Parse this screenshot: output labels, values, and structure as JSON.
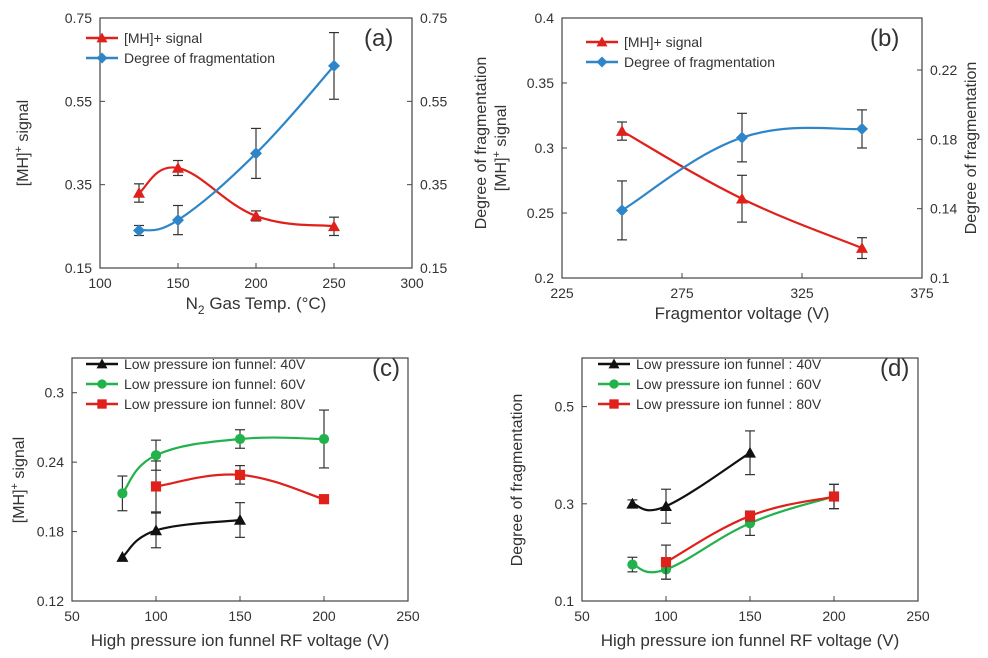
{
  "colors": {
    "red": "#e0201b",
    "blue": "#2e86c8",
    "black": "#111111",
    "green": "#22b24c"
  },
  "chart_data": [
    {
      "type": "line",
      "panel": "(a)",
      "xlabel_main": "N",
      "xlabel_sub": "2",
      "xlabel_rest": " Gas Temp. (°C)",
      "xlim": [
        100,
        300
      ],
      "xticks": [
        "100",
        "150",
        "200",
        "250",
        "300"
      ],
      "ylim": [
        0.15,
        0.75
      ],
      "yticks": [
        "0.15",
        "0.35",
        "0.55",
        "0.75"
      ],
      "ylabel_main": "[MH]",
      "ylabel_sup": "+",
      "ylabel_rest": " signal",
      "y2lim": [
        0.15,
        0.75
      ],
      "y2ticks": [
        "0.15",
        "0.35",
        "0.55",
        "0.75"
      ],
      "y2label": "Degree of fragmentation",
      "legend_position": "top-left",
      "series": [
        {
          "name": "[MH]+ signal",
          "axis": "left",
          "color": "#e0201b",
          "marker": "triangle",
          "x": [
            125,
            150,
            200,
            250
          ],
          "y": [
            0.33,
            0.39,
            0.275,
            0.25
          ],
          "err": [
            0.022,
            0.018,
            0.012,
            0.022
          ]
        },
        {
          "name": "Degree of fragmentation",
          "axis": "right",
          "color": "#2e86c8",
          "marker": "diamond",
          "x": [
            125,
            150,
            200,
            250
          ],
          "y": [
            0.24,
            0.265,
            0.425,
            0.635
          ],
          "err": [
            0.012,
            0.035,
            0.06,
            0.08
          ]
        }
      ]
    },
    {
      "type": "line",
      "panel": "(b)",
      "xlabel_main": "Fragmentor voltage (V)",
      "xlim": [
        225,
        375
      ],
      "xticks": [
        "225",
        "275",
        "325",
        "375"
      ],
      "ylim": [
        0.2,
        0.4
      ],
      "yticks": [
        "0.2",
        "0.25",
        "0.3",
        "0.35",
        "0.4"
      ],
      "ylabel_main": "[MH]",
      "ylabel_sup": "+",
      "ylabel_rest": " signal",
      "y2lim": [
        0.1,
        0.25
      ],
      "y2ticks": [
        "0.1",
        "0.14",
        "0.18",
        "0.22"
      ],
      "y2label": "Degree of fragmentation",
      "legend_position": "top-left",
      "series": [
        {
          "name": "[MH]+ signal",
          "axis": "left",
          "color": "#e0201b",
          "marker": "triangle",
          "x": [
            250,
            300,
            350
          ],
          "y": [
            0.313,
            0.261,
            0.223
          ],
          "err": [
            0.007,
            0.018,
            0.008
          ]
        },
        {
          "name": "Degree of fragmentation",
          "axis": "right",
          "color": "#2e86c8",
          "marker": "diamond",
          "x": [
            250,
            300,
            350
          ],
          "y": [
            0.139,
            0.181,
            0.186
          ],
          "err": [
            0.017,
            0.014,
            0.011
          ]
        }
      ]
    },
    {
      "type": "line",
      "panel": "(c)",
      "xlabel_main": "High pressure ion funnel RF voltage (V)",
      "xlim": [
        50,
        250
      ],
      "xticks": [
        "50",
        "100",
        "150",
        "200",
        "250"
      ],
      "ylim": [
        0.12,
        0.33
      ],
      "yticks": [
        "0.12",
        "0.18",
        "0.24",
        "0.3"
      ],
      "ylabel_main": "[MH]",
      "ylabel_sup": "+",
      "ylabel_rest": " signal",
      "legend_position": "top-left",
      "series": [
        {
          "name": "Low pressure ion funnel: 40V",
          "axis": "left",
          "color": "#111111",
          "marker": "triangle",
          "x": [
            80,
            100,
            150
          ],
          "y": [
            0.158,
            0.181,
            0.19
          ],
          "err": [
            0,
            0.015,
            0.015
          ]
        },
        {
          "name": "Low pressure ion funnel: 60V",
          "axis": "left",
          "color": "#22b24c",
          "marker": "circle",
          "x": [
            80,
            100,
            150,
            200
          ],
          "y": [
            0.213,
            0.246,
            0.26,
            0.26
          ],
          "err": [
            0.015,
            0.013,
            0.008,
            0.025
          ]
        },
        {
          "name": "Low pressure ion funnel: 80V",
          "axis": "left",
          "color": "#e0201b",
          "marker": "square",
          "x": [
            100,
            150,
            200
          ],
          "y": [
            0.219,
            0.229,
            0.208
          ],
          "err": [
            0.022,
            0.008,
            0
          ]
        }
      ]
    },
    {
      "type": "line",
      "panel": "(d)",
      "xlabel_main": "High pressure ion funnel RF voltage (V)",
      "xlim": [
        50,
        250
      ],
      "xticks": [
        "50",
        "100",
        "150",
        "200",
        "250"
      ],
      "ylim": [
        0.1,
        0.6
      ],
      "yticks": [
        "0.1",
        "0.3",
        "0.5"
      ],
      "ylabel_main": "Degree of fragmentation",
      "legend_position": "top-left",
      "series": [
        {
          "name": "Low pressure ion funnel : 40V",
          "axis": "left",
          "color": "#111111",
          "marker": "triangle",
          "x": [
            80,
            100,
            150
          ],
          "y": [
            0.3,
            0.295,
            0.405
          ],
          "err": [
            0.008,
            0.035,
            0.045
          ]
        },
        {
          "name": "Low pressure ion funnel : 60V",
          "axis": "left",
          "color": "#22b24c",
          "marker": "circle",
          "x": [
            80,
            100,
            150,
            200
          ],
          "y": [
            0.175,
            0.165,
            0.26,
            0.315
          ],
          "err": [
            0.015,
            0.02,
            0.025,
            0.025
          ]
        },
        {
          "name": "Low pressure ion funnel : 80V",
          "axis": "left",
          "color": "#e0201b",
          "marker": "square",
          "x": [
            100,
            150,
            200
          ],
          "y": [
            0.18,
            0.275,
            0.315
          ],
          "err": [
            0.035,
            0.01,
            0.025
          ]
        }
      ]
    }
  ]
}
